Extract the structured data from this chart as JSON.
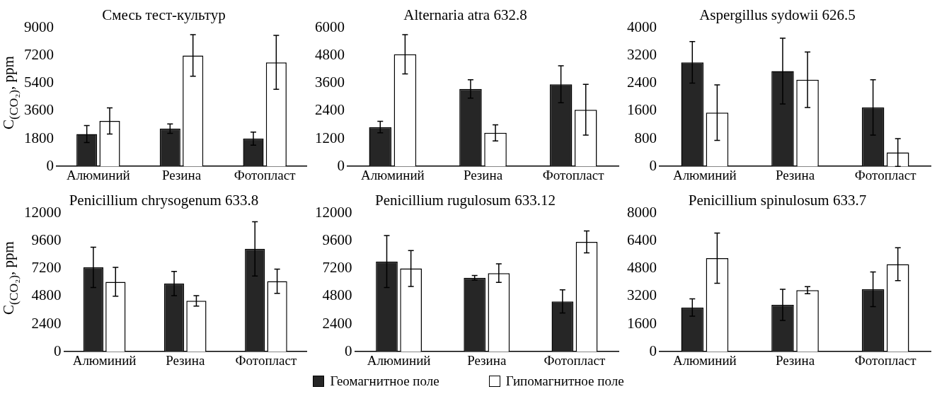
{
  "chart_data": [
    {
      "type": "bar",
      "title": "Смесь тест-культур",
      "ylabel": "C$_{(CO₂)}$, ppm",
      "categories": [
        "Алюминий",
        "Резина",
        "Фотопласт"
      ],
      "ylim": [
        0,
        9000
      ],
      "yticks": [
        0,
        1800,
        3600,
        5400,
        7200,
        9000
      ],
      "series": [
        {
          "color": "#262626",
          "values": [
            2100,
            2450,
            1800
          ],
          "errors": [
            550,
            300,
            430
          ]
        },
        {
          "color": "#ffffff",
          "values": [
            2950,
            7200,
            6750
          ],
          "errors": [
            850,
            1350,
            1750
          ]
        }
      ]
    },
    {
      "type": "bar",
      "title": "Alternaria atra 632.8",
      "categories": [
        "Алюминий",
        "Резина",
        "Фотопласт"
      ],
      "ylim": [
        0,
        6000
      ],
      "yticks": [
        0,
        1200,
        2400,
        3600,
        4800,
        6000
      ],
      "series": [
        {
          "color": "#262626",
          "values": [
            1700,
            3350,
            3550
          ],
          "errors": [
            250,
            400,
            800
          ]
        },
        {
          "color": "#ffffff",
          "values": [
            4850,
            1450,
            2450
          ],
          "errors": [
            850,
            350,
            1100
          ]
        }
      ]
    },
    {
      "type": "bar",
      "title": "Aspergillus sydowii 626.5",
      "categories": [
        "Алюминий",
        "Резина",
        "Фотопласт"
      ],
      "ylim": [
        0,
        4000
      ],
      "yticks": [
        0,
        800,
        1600,
        2400,
        3200,
        4000
      ],
      "series": [
        {
          "color": "#262626",
          "values": [
            3000,
            2750,
            1700
          ],
          "errors": [
            600,
            950,
            800
          ]
        },
        {
          "color": "#ffffff",
          "values": [
            1550,
            2500,
            400
          ],
          "errors": [
            800,
            800,
            400
          ]
        }
      ]
    },
    {
      "type": "bar",
      "title": "Penicillium chrysogenum 633.8",
      "ylabel": "C$_{(CO₂)}$, ppm",
      "categories": [
        "Алюминий",
        "Резина",
        "Фотопласт"
      ],
      "ylim": [
        0,
        12000
      ],
      "yticks": [
        0,
        2400,
        4800,
        7200,
        9600,
        12000
      ],
      "series": [
        {
          "color": "#262626",
          "values": [
            7300,
            5900,
            8900
          ],
          "errors": [
            1750,
            1050,
            2350
          ]
        },
        {
          "color": "#ffffff",
          "values": [
            6050,
            4400,
            6100
          ],
          "errors": [
            1250,
            450,
            1050
          ]
        }
      ]
    },
    {
      "type": "bar",
      "title": "Penicillium rugulosum 633.12",
      "categories": [
        "Алюминий",
        "Резина",
        "Фотопласт"
      ],
      "ylim": [
        0,
        12000
      ],
      "yticks": [
        0,
        2400,
        4800,
        7200,
        9600,
        12000
      ],
      "legend": "bottom",
      "series": [
        {
          "name": "Геомагнитное поле",
          "color": "#262626",
          "values": [
            7800,
            6400,
            4350
          ],
          "errors": [
            2250,
            200,
            1000
          ]
        },
        {
          "name": "Гипомагнитное поле",
          "color": "#ffffff",
          "values": [
            7200,
            6800,
            9500
          ],
          "errors": [
            1550,
            800,
            950
          ]
        }
      ]
    },
    {
      "type": "bar",
      "title": "Penicillium spinulosum 633.7",
      "categories": [
        "Алюминий",
        "Резина",
        "Фотопласт"
      ],
      "ylim": [
        0,
        8000
      ],
      "yticks": [
        0,
        1600,
        3200,
        4800,
        6400,
        8000
      ],
      "series": [
        {
          "color": "#262626",
          "values": [
            2550,
            2700,
            3600
          ],
          "errors": [
            500,
            900,
            1000
          ]
        },
        {
          "color": "#ffffff",
          "values": [
            5400,
            3550,
            5050
          ],
          "errors": [
            1450,
            200,
            950
          ]
        }
      ]
    }
  ]
}
